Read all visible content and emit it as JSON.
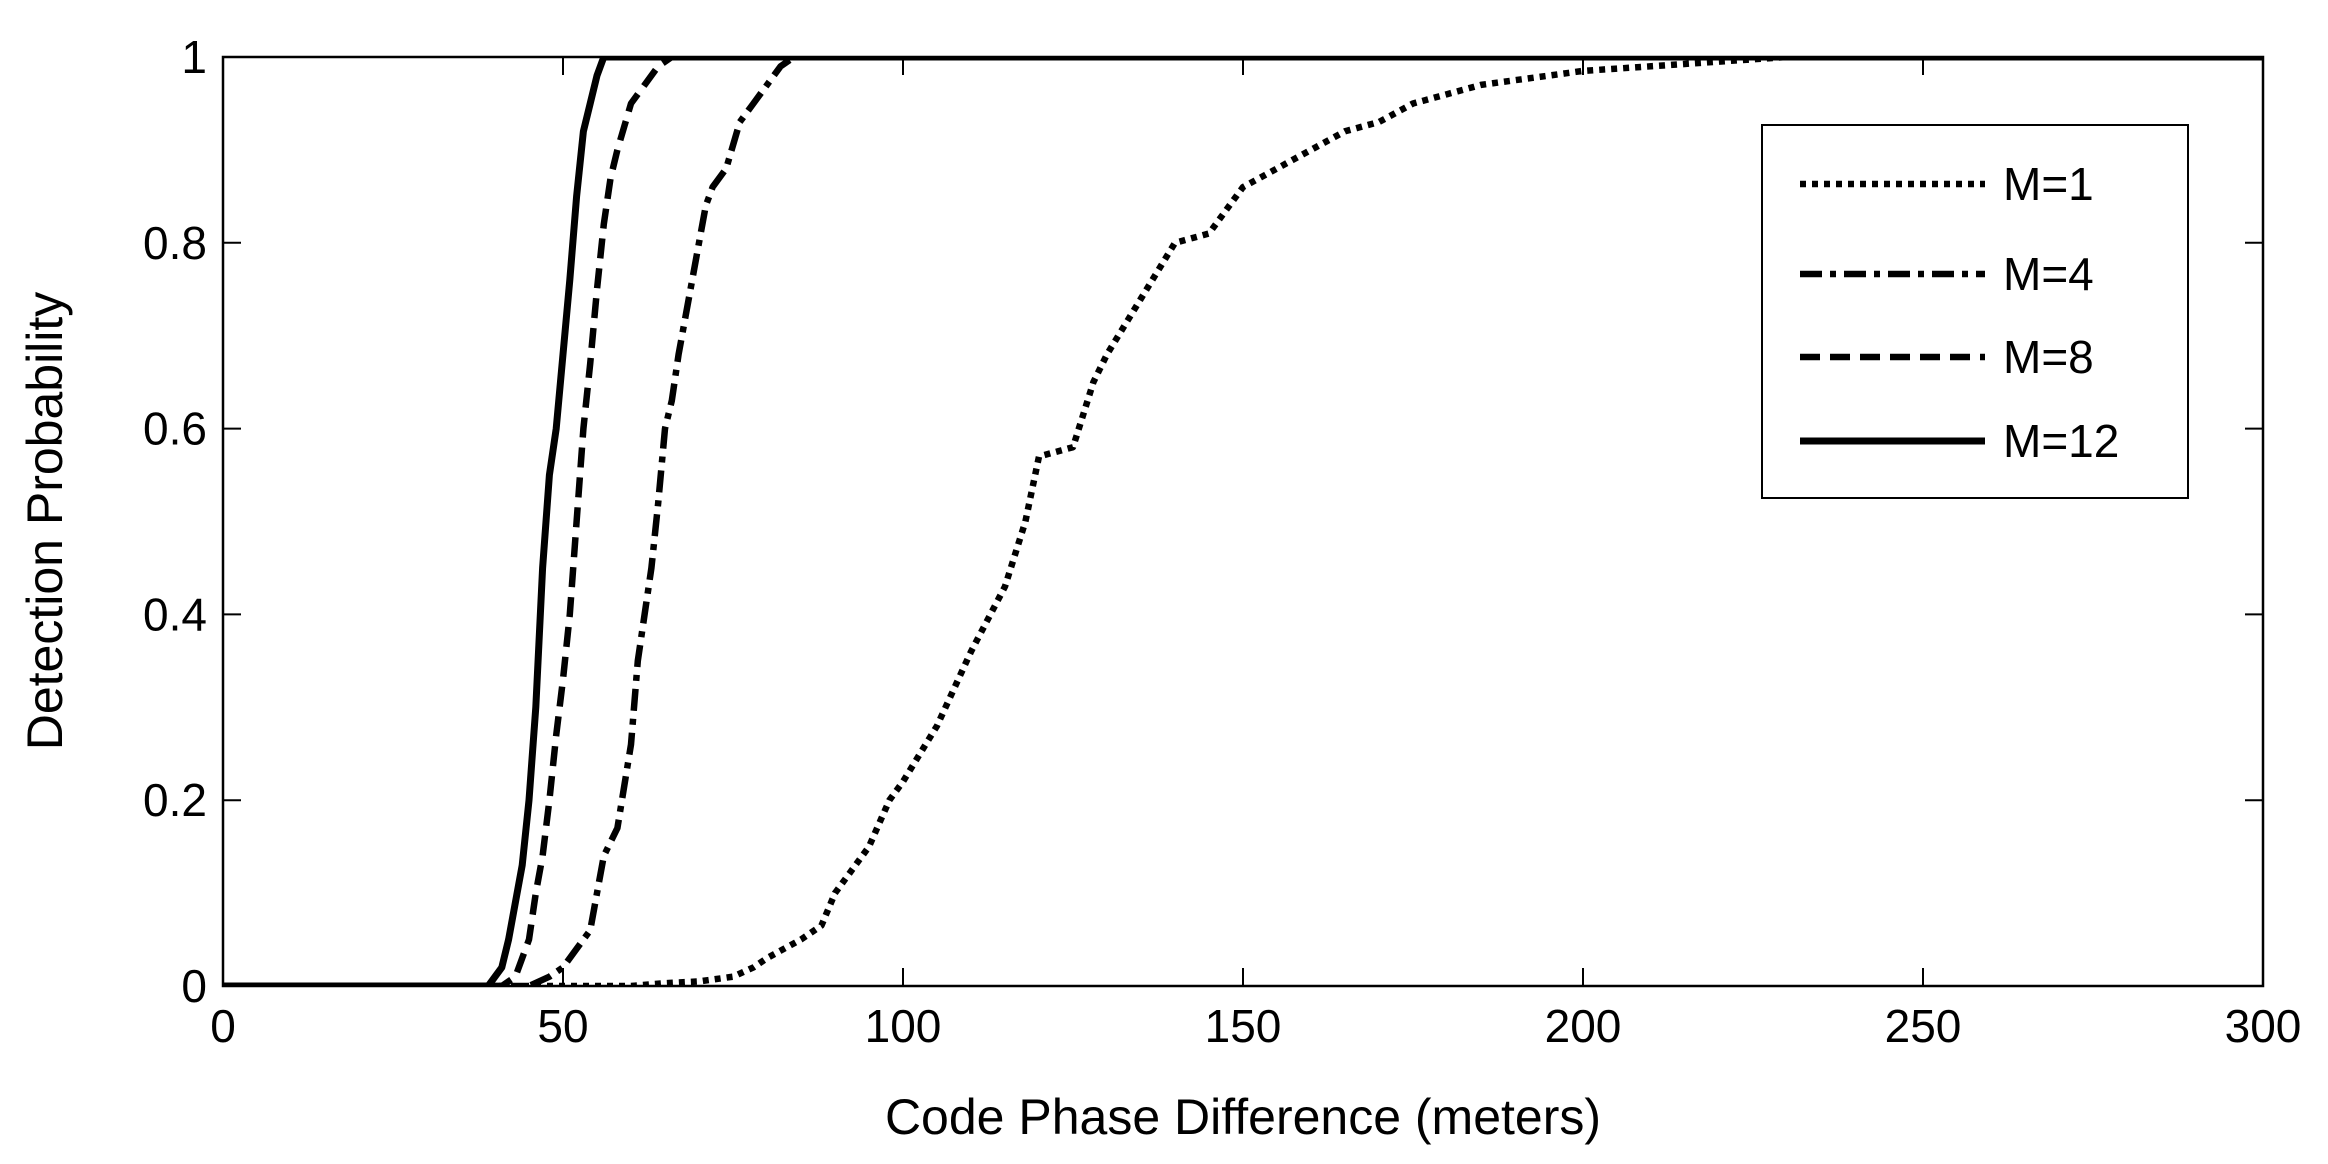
{
  "chart_data": {
    "type": "line",
    "title": "",
    "xlabel": "Code Phase Difference (meters)",
    "ylabel": "Detection Probability",
    "xlim": [
      0,
      300
    ],
    "ylim": [
      0,
      1
    ],
    "x_ticks": [
      0,
      50,
      100,
      150,
      200,
      250,
      300
    ],
    "y_ticks": [
      0,
      0.2,
      0.4,
      0.6,
      0.8,
      1
    ],
    "x_tick_labels": [
      "0",
      "50",
      "100",
      "150",
      "200",
      "250",
      "300"
    ],
    "y_tick_labels": [
      "0",
      "0.2",
      "0.4",
      "0.6",
      "0.8",
      "1"
    ],
    "grid": false,
    "legend_position": "top-right",
    "line_color": "#000000",
    "series": [
      {
        "name": "M=1",
        "style": "dotted",
        "x": [
          0,
          50,
          60,
          65,
          70,
          75,
          78,
          80,
          85,
          88,
          90,
          95,
          98,
          100,
          105,
          110,
          115,
          118,
          120,
          125,
          128,
          130,
          135,
          140,
          145,
          148,
          150,
          155,
          160,
          165,
          170,
          175,
          180,
          185,
          190,
          195,
          200,
          210,
          220,
          230,
          240,
          260,
          300
        ],
        "y": [
          0,
          0,
          0,
          0.003,
          0.005,
          0.01,
          0.02,
          0.03,
          0.05,
          0.065,
          0.1,
          0.15,
          0.2,
          0.22,
          0.28,
          0.36,
          0.43,
          0.5,
          0.57,
          0.58,
          0.65,
          0.68,
          0.74,
          0.8,
          0.81,
          0.84,
          0.86,
          0.88,
          0.9,
          0.92,
          0.93,
          0.95,
          0.96,
          0.97,
          0.975,
          0.98,
          0.985,
          0.99,
          0.995,
          1,
          1,
          1,
          1
        ]
      },
      {
        "name": "M=4",
        "style": "dashdot",
        "x": [
          0,
          45,
          48,
          50,
          52,
          54,
          55,
          56,
          58,
          60,
          61,
          62,
          63,
          64,
          65,
          66,
          67,
          68,
          69,
          70,
          71,
          72,
          74,
          76,
          78,
          80,
          82,
          84,
          86,
          88,
          300
        ],
        "y": [
          0,
          0,
          0.01,
          0.02,
          0.04,
          0.06,
          0.1,
          0.14,
          0.17,
          0.26,
          0.35,
          0.4,
          0.45,
          0.52,
          0.6,
          0.63,
          0.68,
          0.72,
          0.76,
          0.8,
          0.84,
          0.86,
          0.88,
          0.93,
          0.95,
          0.97,
          0.99,
          1,
          1,
          1,
          1
        ]
      },
      {
        "name": "M=8",
        "style": "dashed",
        "x": [
          0,
          41,
          43,
          44,
          45,
          46,
          47,
          48,
          49,
          50,
          51,
          52,
          53,
          54,
          55,
          56,
          57,
          58,
          60,
          62,
          64,
          66,
          67,
          300
        ],
        "y": [
          0,
          0,
          0.01,
          0.03,
          0.05,
          0.1,
          0.14,
          0.2,
          0.27,
          0.33,
          0.4,
          0.5,
          0.6,
          0.67,
          0.75,
          0.82,
          0.87,
          0.9,
          0.95,
          0.97,
          0.99,
          1,
          1,
          1
        ]
      },
      {
        "name": "M=12",
        "style": "solid",
        "x": [
          0,
          39,
          40,
          41,
          42,
          43,
          44,
          45,
          46,
          47,
          48,
          49,
          50,
          51,
          52,
          53,
          54,
          55,
          56,
          57,
          58,
          300
        ],
        "y": [
          0,
          0,
          0.01,
          0.02,
          0.05,
          0.09,
          0.13,
          0.2,
          0.3,
          0.45,
          0.55,
          0.6,
          0.68,
          0.76,
          0.85,
          0.92,
          0.95,
          0.98,
          1,
          1,
          1,
          1
        ]
      }
    ]
  }
}
